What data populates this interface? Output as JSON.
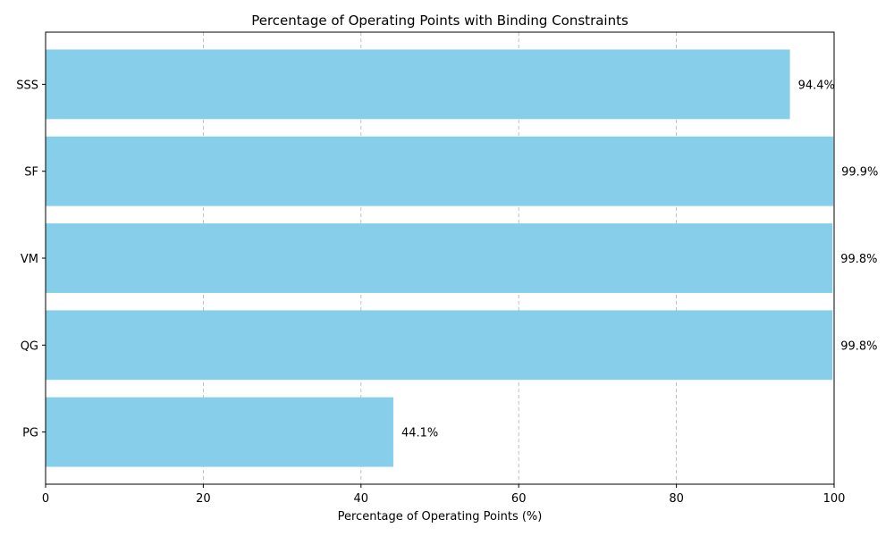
{
  "chart_data": {
    "type": "bar",
    "orientation": "horizontal",
    "title": "Percentage of Operating Points with Binding Constraints",
    "xlabel": "Percentage of Operating Points (%)",
    "ylabel": "",
    "categories": [
      "PG",
      "QG",
      "VM",
      "SF",
      "SSS"
    ],
    "values": [
      44.1,
      99.8,
      99.8,
      99.9,
      94.4
    ],
    "value_labels": [
      "44.1%",
      "99.8%",
      "99.8%",
      "99.9%",
      "94.4%"
    ],
    "xlim": [
      0,
      100
    ],
    "xticks": [
      0,
      20,
      40,
      60,
      80,
      100
    ],
    "grid": "x-dashed",
    "bar_color": "#87CEEB"
  }
}
